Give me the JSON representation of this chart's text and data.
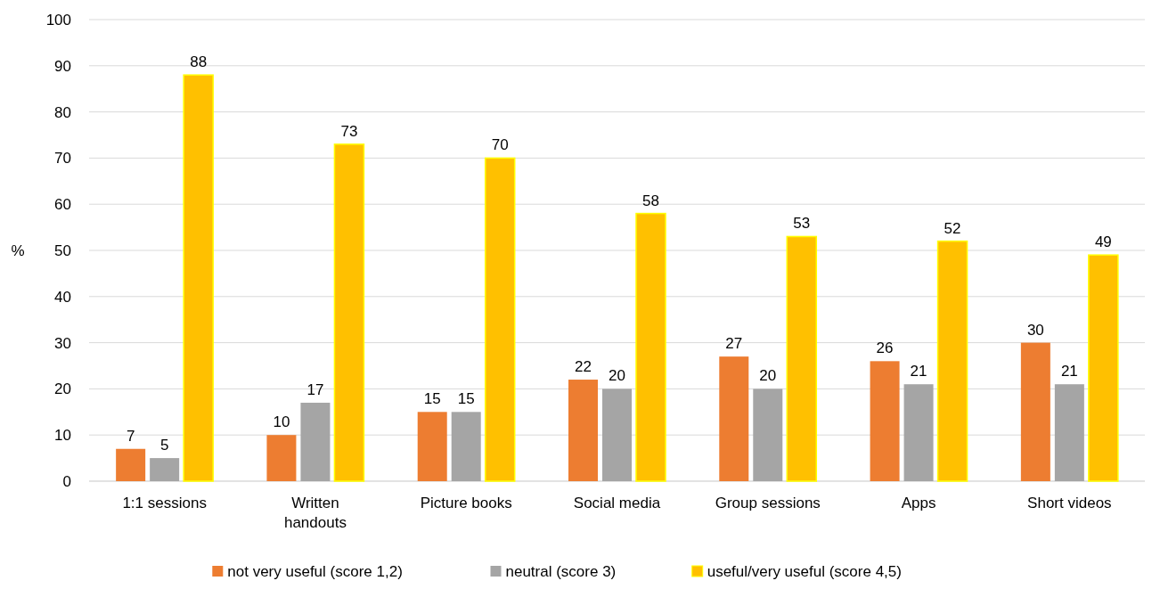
{
  "chart_data": {
    "type": "bar",
    "ylabel": "%",
    "categories": [
      "1:1 sessions",
      "Written handouts",
      "Picture books",
      "Social media",
      "Group sessions",
      "Apps",
      "Short videos"
    ],
    "series": [
      {
        "name": "not very useful (score 1,2)",
        "color": "#ed7d31",
        "values": [
          7,
          10,
          15,
          22,
          27,
          26,
          30
        ]
      },
      {
        "name": "neutral (score 3)",
        "color": "#a5a5a5",
        "values": [
          5,
          17,
          15,
          20,
          20,
          21,
          21
        ]
      },
      {
        "name": "useful/very useful (score 4,5)",
        "color": "#ffc000",
        "values": [
          88,
          73,
          70,
          58,
          53,
          52,
          49
        ]
      }
    ],
    "ylim": [
      0,
      100
    ],
    "yticks": [
      0,
      10,
      20,
      30,
      40,
      50,
      60,
      70,
      80,
      90,
      100
    ],
    "grid": "y",
    "legend": "bottom",
    "data_labels": true
  }
}
